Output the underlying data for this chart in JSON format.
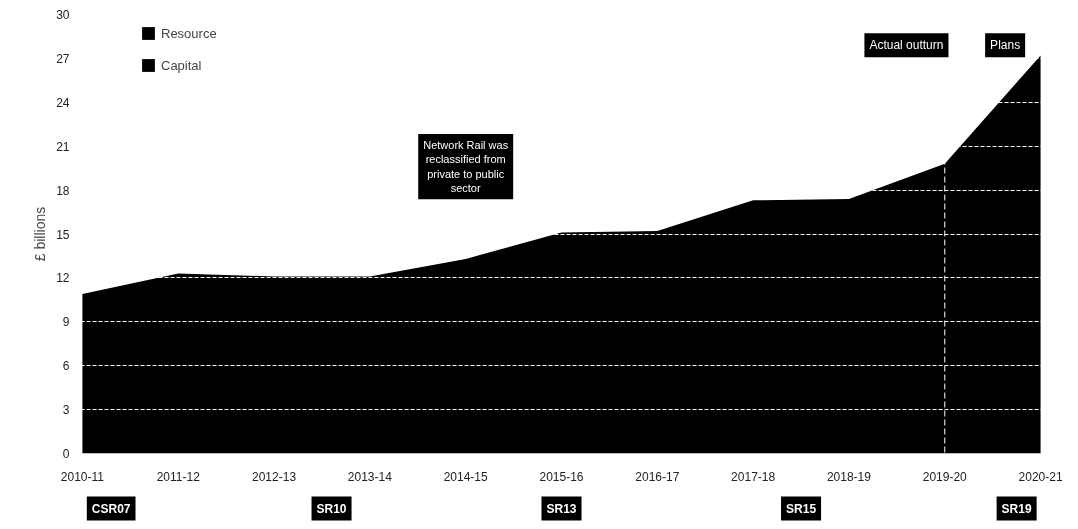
{
  "chart_data": {
    "type": "area",
    "ylabel": "£ billions",
    "categories": [
      "2010-11",
      "2011-12",
      "2012-13",
      "2013-14",
      "2014-15",
      "2015-16",
      "2016-17",
      "2017-18",
      "2018-19",
      "2019-20",
      "2020-21"
    ],
    "series": [
      {
        "name": "Resource",
        "color": "#000000",
        "values": [
          10.9,
          12.3,
          12.1,
          12.1,
          13.3,
          15.1,
          15.2,
          17.3,
          17.4,
          19.8,
          27.2
        ]
      },
      {
        "name": "Capital",
        "color": "#000000",
        "values": [
          null,
          null,
          null,
          null,
          null,
          null,
          null,
          null,
          null,
          null,
          null
        ]
      }
    ],
    "ylim": [
      0,
      30
    ],
    "yticks": [
      0,
      3,
      6,
      9,
      12,
      15,
      18,
      21,
      24,
      27,
      30
    ],
    "grid": "y",
    "legend": "top left",
    "ref_lines": [
      {
        "axis": "x",
        "value": "2019-20",
        "color": "#ffffff",
        "line_style": "dashed"
      }
    ],
    "annotations": [
      "Network Rail was reclassified from private to public sector",
      "Actual outturn",
      "Plans",
      "CSR07",
      "SR10",
      "SR13",
      "SR15",
      "SR19"
    ]
  }
}
